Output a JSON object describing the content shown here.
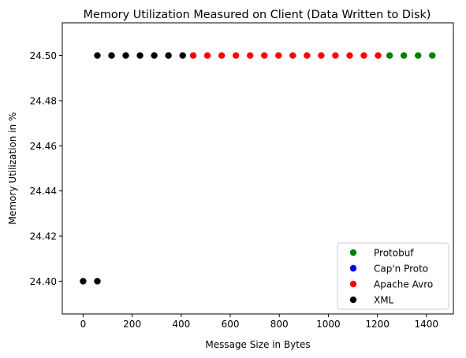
{
  "chart_data": {
    "type": "scatter",
    "title": "Memory Utilization Measured on Client (Data Written to Disk)",
    "xlabel": "Message Size in Bytes",
    "ylabel": "Memory Utilization in %",
    "xlim": [
      -85,
      1510
    ],
    "ylim": [
      24.3855,
      24.5145
    ],
    "xticks": [
      0,
      200,
      400,
      600,
      800,
      1000,
      1200,
      1400
    ],
    "xtick_labels": [
      "0",
      "200",
      "400",
      "600",
      "800",
      "1000",
      "1200",
      "1400"
    ],
    "yticks": [
      24.4,
      24.42,
      24.44,
      24.46,
      24.48,
      24.5
    ],
    "ytick_labels": [
      "24.40",
      "24.42",
      "24.44",
      "24.46",
      "24.48",
      "24.50"
    ],
    "grid": false,
    "legend_position": "lower-right",
    "series": [
      {
        "name": "Protobuf",
        "color": "#008000",
        "x": [
          1250,
          1308,
          1366,
          1424
        ],
        "y": [
          24.5,
          24.5,
          24.5,
          24.5
        ]
      },
      {
        "name": "Cap'n Proto",
        "color": "#0000ff",
        "x": [],
        "y": []
      },
      {
        "name": "Apache Avro",
        "color": "#ff0000",
        "x": [
          449,
          507,
          565,
          623,
          681,
          739,
          797,
          855,
          913,
          971,
          1029,
          1087,
          1145,
          1203
        ],
        "y": [
          24.5,
          24.5,
          24.5,
          24.5,
          24.5,
          24.5,
          24.5,
          24.5,
          24.5,
          24.5,
          24.5,
          24.5,
          24.5,
          24.5
        ]
      },
      {
        "name": "XML",
        "color": "#000000",
        "x": [
          0,
          58,
          58,
          116,
          174,
          232,
          290,
          348,
          406
        ],
        "y": [
          24.4,
          24.4,
          24.5,
          24.5,
          24.5,
          24.5,
          24.5,
          24.5,
          24.5
        ]
      }
    ]
  }
}
